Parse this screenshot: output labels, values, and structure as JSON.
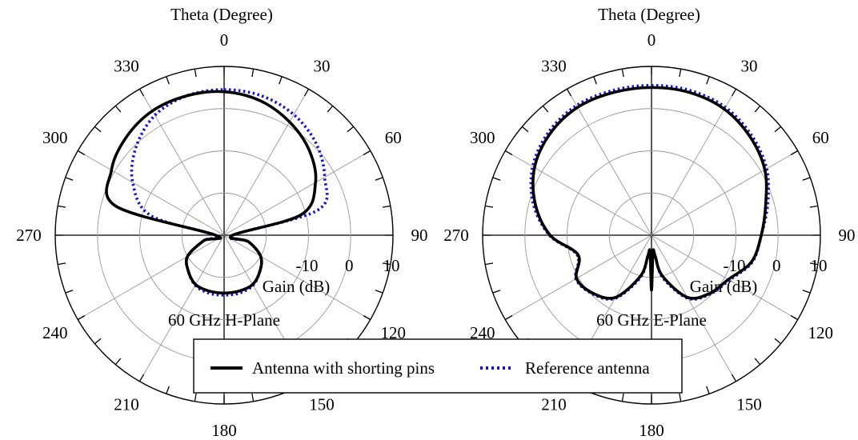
{
  "colors": {
    "series_primary": "#000000",
    "series_reference": "#1111dd",
    "grid": "#999999",
    "axis": "#000000"
  },
  "legend": {
    "entries": [
      {
        "label": "Antenna with shorting pins",
        "line_style": "solid",
        "color": "#000000"
      },
      {
        "label": "Reference antenna",
        "line_style": "dotted",
        "color": "#1111dd"
      }
    ],
    "placement": "bottom-center"
  },
  "chart_data": [
    {
      "type": "polar-line",
      "caption": "60 GHz H-Plane",
      "angle_title": "Theta (Degree)",
      "radial_title": "Gain (dB)",
      "angle_ticks": [
        "0",
        "30",
        "60",
        "90",
        "120",
        "150",
        "180",
        "210",
        "240",
        "270",
        "300",
        "330"
      ],
      "angle_direction": "clockwise",
      "angle_zero": "top",
      "radial_range": [
        -30,
        10
      ],
      "radial_ticks": [
        -10,
        0,
        10
      ],
      "radial_tick_labels": [
        "-10",
        "0",
        "10"
      ],
      "grid": true,
      "series": [
        {
          "label": "Antenna with shorting pins",
          "theta": [
            0,
            15,
            30,
            45,
            60,
            75,
            90,
            105,
            120,
            135,
            150,
            165,
            180,
            195,
            210,
            225,
            240,
            255,
            270,
            285,
            300,
            315,
            330,
            345
          ],
          "gain": [
            4.0,
            3.0,
            1.0,
            -1.5,
            -5.0,
            -11.0,
            -28.0,
            -24.0,
            -20.0,
            -18.0,
            -16.5,
            -16.3,
            -16.3,
            -16.3,
            -16.5,
            -18.0,
            -20.0,
            -25.0,
            -28.0,
            -3.5,
            0.8,
            2.8,
            4.0,
            4.2
          ]
        },
        {
          "label": "Reference antenna",
          "theta": [
            0,
            15,
            30,
            45,
            60,
            75,
            90,
            105,
            120,
            135,
            150,
            165,
            180,
            195,
            210,
            225,
            240,
            255,
            270,
            285,
            300,
            315,
            330,
            345
          ],
          "gain": [
            4.5,
            4.2,
            3.0,
            0.8,
            -2.5,
            -7.0,
            -28.0,
            -24.0,
            -20.0,
            -18.0,
            -16.3,
            -15.8,
            -15.8,
            -15.8,
            -16.3,
            -18.0,
            -20.0,
            -25.0,
            -28.0,
            -12.0,
            -5.0,
            -0.5,
            2.8,
            4.2
          ]
        }
      ]
    },
    {
      "type": "polar-line",
      "caption": "60 GHz E-Plane",
      "angle_title": "Theta (Degree)",
      "radial_title": "Gain (dB)",
      "angle_ticks": [
        "0",
        "30",
        "60",
        "90",
        "120",
        "150",
        "180",
        "210",
        "240",
        "270",
        "300",
        "330"
      ],
      "angle_direction": "clockwise",
      "angle_zero": "top",
      "radial_range": [
        -30,
        10
      ],
      "radial_ticks": [
        -10,
        0,
        10
      ],
      "radial_tick_labels": [
        "-10",
        "0",
        "10"
      ],
      "grid": true,
      "series": [
        {
          "label": "Antenna with shorting pins",
          "theta": [
            0,
            15,
            30,
            45,
            60,
            75,
            90,
            105,
            120,
            135,
            150,
            165,
            170,
            175,
            180,
            185,
            190,
            195,
            210,
            225,
            240,
            255,
            270,
            285,
            300,
            315,
            330,
            345
          ],
          "gain": [
            5.0,
            5.0,
            4.5,
            3.0,
            1.0,
            -2.0,
            -4.0,
            -5.5,
            -9.0,
            -10.5,
            -13.0,
            -20.0,
            -25.0,
            -26.0,
            -17.0,
            -26.0,
            -25.0,
            -20.0,
            -13.0,
            -10.5,
            -9.5,
            -12.0,
            -6.0,
            -1.5,
            2.0,
            4.0,
            5.0,
            5.0
          ]
        },
        {
          "label": "Reference antenna",
          "theta": [
            0,
            15,
            30,
            45,
            60,
            75,
            90,
            105,
            120,
            135,
            150,
            165,
            170,
            175,
            180,
            185,
            190,
            195,
            210,
            225,
            240,
            255,
            270,
            285,
            300,
            315,
            330,
            345
          ],
          "gain": [
            5.5,
            5.5,
            5.0,
            3.5,
            1.5,
            -1.5,
            -4.0,
            -5.3,
            -8.7,
            -10.3,
            -12.7,
            -19.5,
            -24.5,
            -26.0,
            -17.0,
            -26.0,
            -24.5,
            -19.5,
            -12.7,
            -10.3,
            -9.3,
            -11.8,
            -5.8,
            -1.0,
            2.5,
            4.5,
            5.5,
            5.5
          ]
        }
      ]
    }
  ]
}
